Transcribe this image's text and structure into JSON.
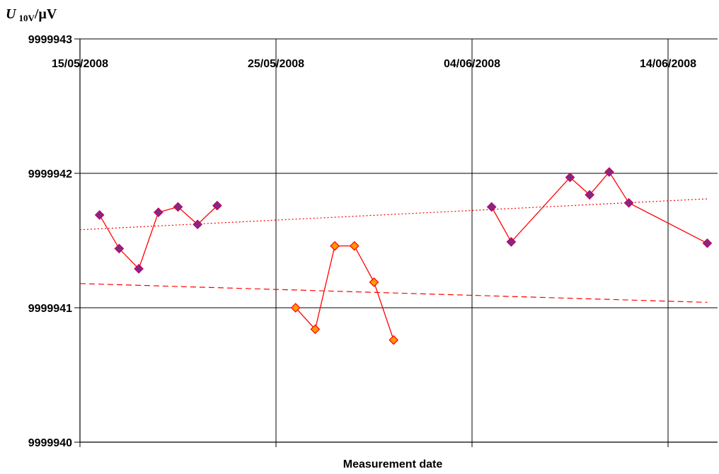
{
  "chart_data": {
    "type": "scatter",
    "title": "",
    "ylabel": {
      "symbol": "U",
      "subscript": "10V",
      "unit": "/µV"
    },
    "xlabel": "Measurement date",
    "x_tick_labels": [
      "15/05/2008",
      "25/05/2008",
      "04/06/2008",
      "14/06/2008"
    ],
    "y_tick_labels": [
      "9999943",
      "9999942",
      "9999941",
      "9999940"
    ],
    "ylim": [
      9999940,
      9999943
    ],
    "xlim": [
      "2008-05-15",
      "2008-06-16"
    ],
    "grid": true,
    "legend": "none",
    "colors": {
      "series_line": "#ff0000",
      "marker_purple_fill": "#7f2a8a",
      "marker_purple_edge": "#cc0055",
      "marker_orange_fill": "#ff9900",
      "marker_orange_edge": "#ff0000",
      "trend_line": "#ff0000",
      "grid": "#000000"
    },
    "series": [
      {
        "marker": "purple-diamond",
        "points": [
          {
            "x": "2008-05-16",
            "y": 9999941.69
          },
          {
            "x": "2008-05-17",
            "y": 9999941.44
          },
          {
            "x": "2008-05-18",
            "y": 9999941.29
          },
          {
            "x": "2008-05-19",
            "y": 9999941.71
          },
          {
            "x": "2008-05-20",
            "y": 9999941.75
          },
          {
            "x": "2008-05-21",
            "y": 9999941.62
          },
          {
            "x": "2008-05-22",
            "y": 9999941.76
          }
        ]
      },
      {
        "marker": "orange-diamond",
        "points": [
          {
            "x": "2008-05-26",
            "y": 9999941.0
          },
          {
            "x": "2008-05-27",
            "y": 9999940.84
          },
          {
            "x": "2008-05-28",
            "y": 9999941.46
          },
          {
            "x": "2008-05-29",
            "y": 9999941.46
          },
          {
            "x": "2008-05-30",
            "y": 9999941.19
          },
          {
            "x": "2008-05-31",
            "y": 9999940.76
          }
        ]
      },
      {
        "marker": "purple-diamond",
        "points": [
          {
            "x": "2008-06-05",
            "y": 9999941.75
          },
          {
            "x": "2008-06-06",
            "y": 9999941.49
          },
          {
            "x": "2008-06-09",
            "y": 9999941.97
          },
          {
            "x": "2008-06-10",
            "y": 9999941.84
          },
          {
            "x": "2008-06-11",
            "y": 9999942.01
          },
          {
            "x": "2008-06-12",
            "y": 9999941.78
          },
          {
            "x": "2008-06-16",
            "y": 9999941.48
          }
        ]
      }
    ],
    "trend_lines": [
      {
        "style": "dotted",
        "from": {
          "x": "2008-05-15",
          "y": 9999941.58
        },
        "to": {
          "x": "2008-06-16",
          "y": 9999941.81
        }
      },
      {
        "style": "dashed",
        "from": {
          "x": "2008-05-15",
          "y": 9999941.18
        },
        "to": {
          "x": "2008-06-16",
          "y": 9999941.04
        }
      }
    ]
  }
}
